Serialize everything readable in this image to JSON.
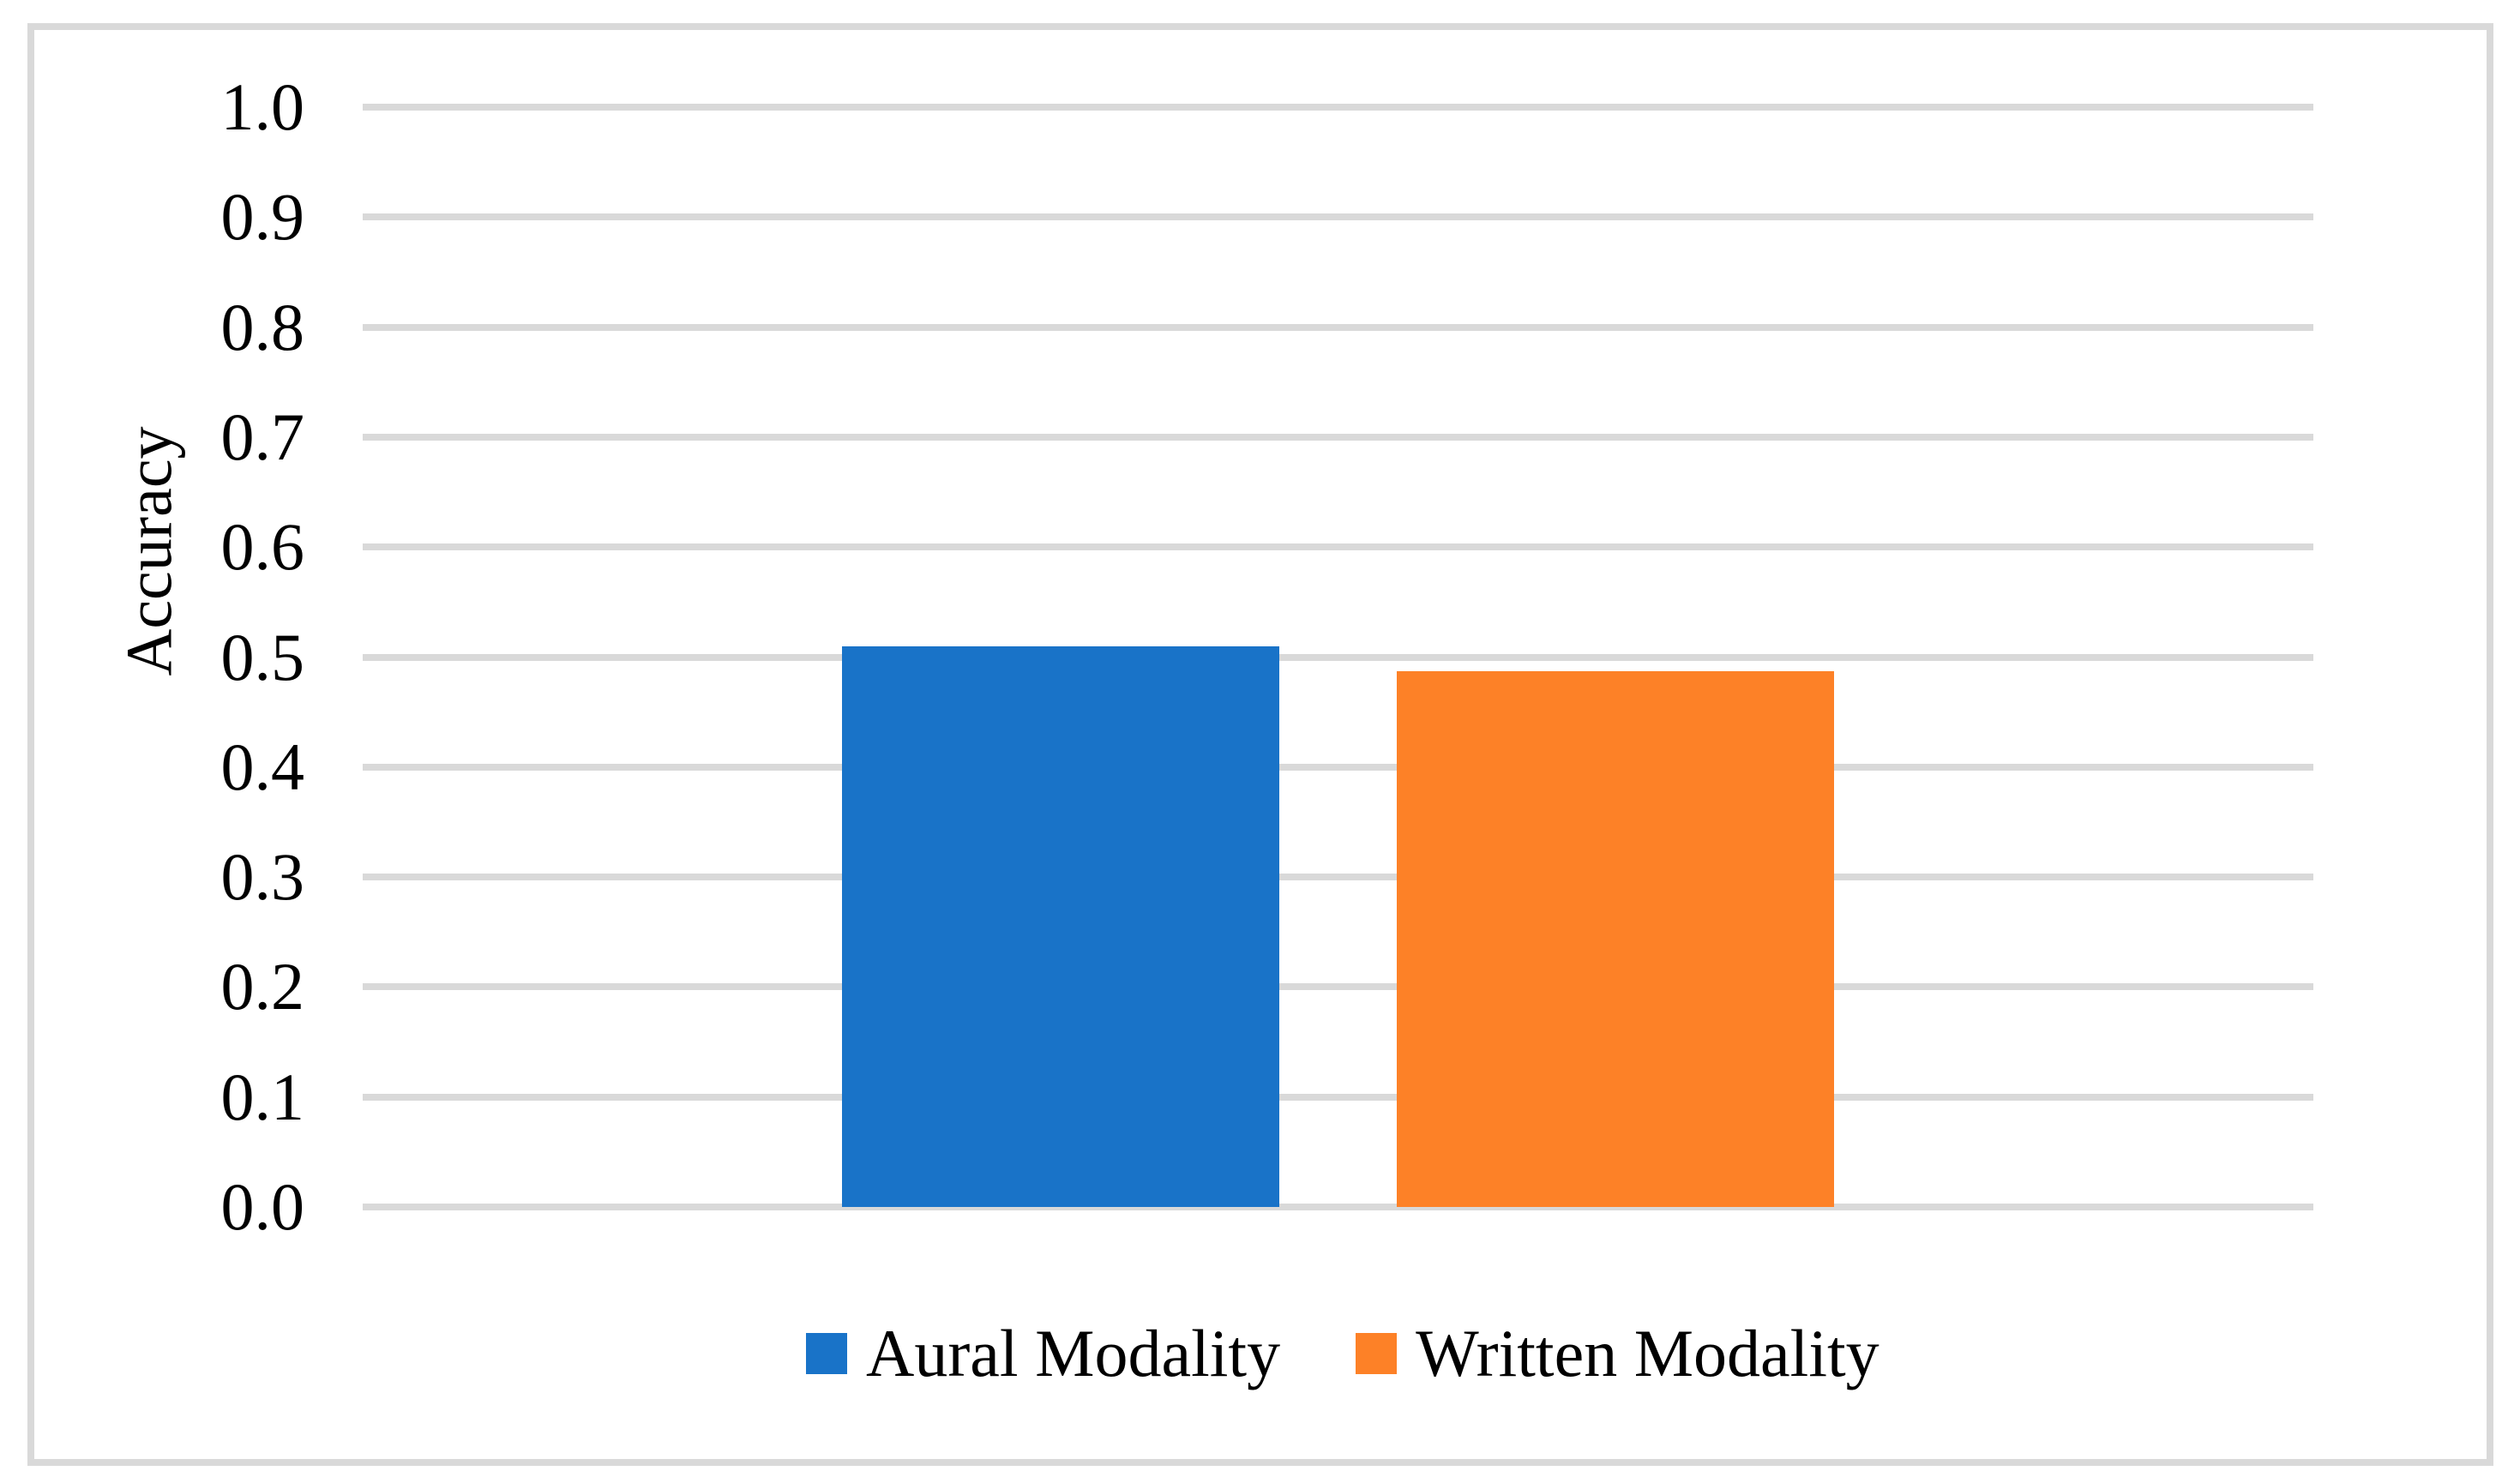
{
  "figure": {
    "background": "#FFFFFF",
    "frame_border_color": "#D9D9D9"
  },
  "chart_data": {
    "type": "bar",
    "categories": [
      ""
    ],
    "series": [
      {
        "name": "Aural Modality",
        "values": [
          0.51
        ],
        "color": "#1973C8"
      },
      {
        "name": "Written Modality",
        "values": [
          0.487
        ],
        "color": "#FD8127"
      }
    ],
    "title": "",
    "xlabel": "",
    "ylabel": "Accuracy",
    "ylim": [
      0.0,
      1.0
    ],
    "ytick_step": 0.1,
    "ytick_labels": [
      "1.0",
      "0.9",
      "0.8",
      "0.7",
      "0.6",
      "0.5",
      "0.4",
      "0.3",
      "0.2",
      "0.1",
      "0.0"
    ],
    "grid": "horizontal",
    "gridline_color": "#D9D9D9",
    "legend_position": "bottom",
    "legend_marker": "square",
    "text_color": "#000000"
  }
}
